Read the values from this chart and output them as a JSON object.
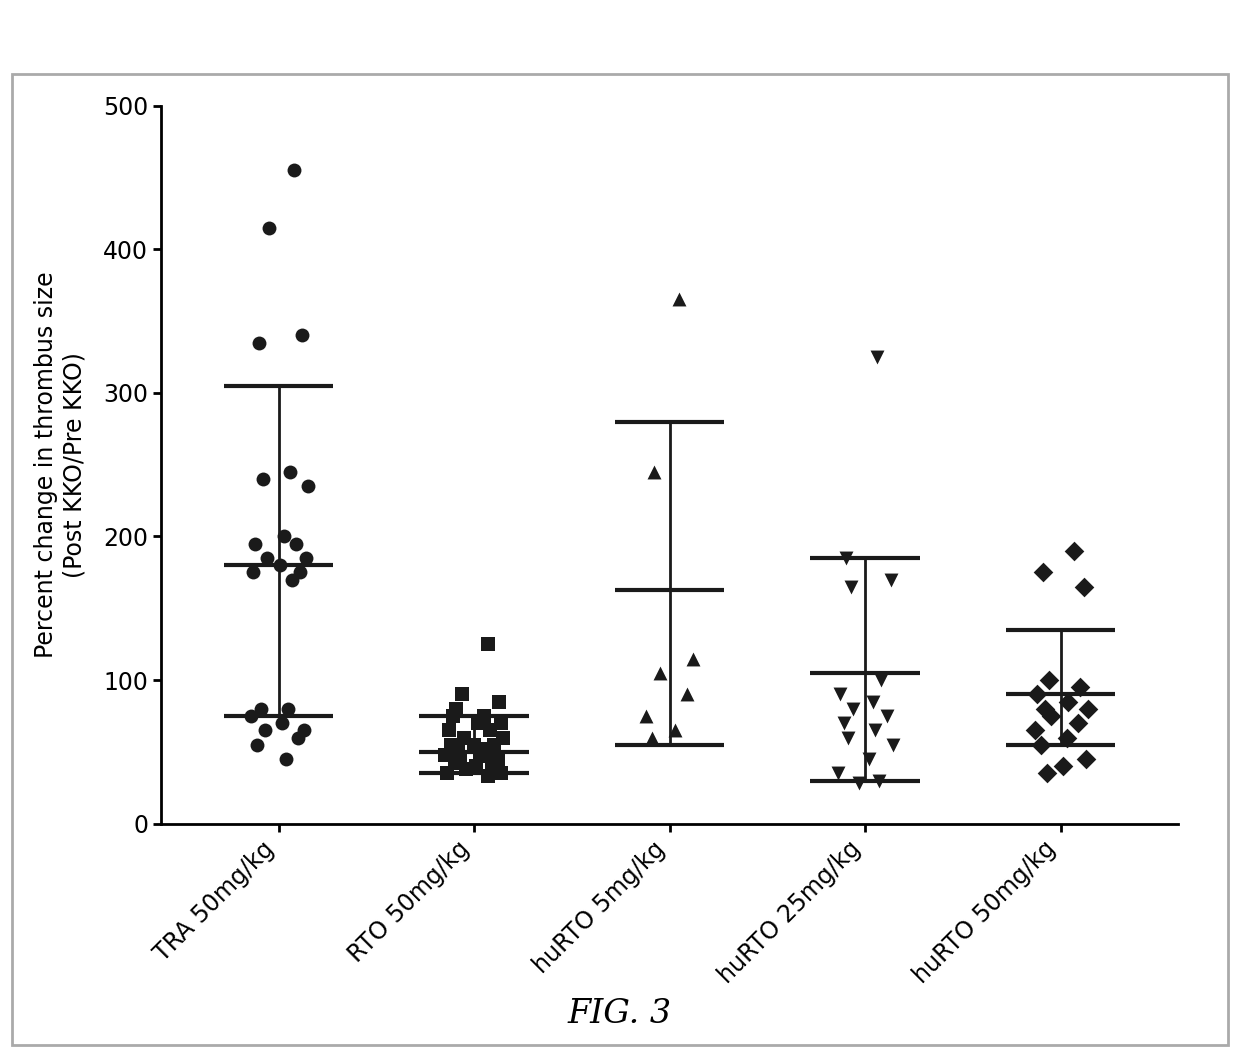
{
  "title": "FIG. 3",
  "ylabel": "Percent change in thrombus size\n(Post KKO/Pre KKO)",
  "ylim": [
    0,
    500
  ],
  "yticks": [
    0,
    100,
    200,
    300,
    400,
    500
  ],
  "categories": [
    "TRA 50mg/kg",
    "RTO 50mg/kg",
    "huRTO 5mg/kg",
    "huRTO 25mg/kg",
    "huRTO 50mg/kg"
  ],
  "background_color": "#ffffff",
  "point_color": "#1a1a1a",
  "errorbar_color": "#1a1a1a",
  "groups": {
    "TRA 50mg/kg": {
      "marker": "o",
      "mean": 180,
      "sd_up": 305,
      "sd_down": 75,
      "points": [
        455,
        415,
        340,
        335,
        245,
        240,
        235,
        200,
        195,
        195,
        185,
        185,
        180,
        175,
        175,
        170,
        80,
        80,
        75,
        70,
        65,
        65,
        60,
        55,
        45
      ]
    },
    "RTO 50mg/kg": {
      "marker": "s",
      "mean": 50,
      "sd_up": 75,
      "sd_down": 35,
      "points": [
        125,
        90,
        85,
        80,
        75,
        75,
        70,
        70,
        65,
        65,
        60,
        60,
        55,
        55,
        55,
        52,
        50,
        50,
        48,
        47,
        45,
        45,
        42,
        42,
        40,
        40,
        38,
        35,
        35,
        33
      ]
    },
    "huRTO 5mg/kg": {
      "marker": "^",
      "mean": 163,
      "sd_up": 280,
      "sd_down": 55,
      "points": [
        365,
        245,
        115,
        105,
        90,
        75,
        65,
        60
      ]
    },
    "huRTO 25mg/kg": {
      "marker": "v",
      "mean": 105,
      "sd_up": 185,
      "sd_down": 30,
      "points": [
        325,
        185,
        170,
        165,
        100,
        90,
        85,
        80,
        75,
        70,
        65,
        60,
        55,
        45,
        35,
        30,
        28
      ]
    },
    "huRTO 50mg/kg": {
      "marker": "D",
      "mean": 90,
      "sd_up": 135,
      "sd_down": 55,
      "points": [
        190,
        175,
        165,
        100,
        95,
        90,
        85,
        80,
        80,
        75,
        70,
        65,
        60,
        55,
        45,
        40,
        35
      ]
    }
  },
  "jitter_seeds": {
    "TRA 50mg/kg": [
      0.08,
      -0.05,
      0.12,
      -0.1,
      0.06,
      -0.08,
      0.15,
      0.03,
      -0.12,
      0.09,
      0.14,
      -0.06,
      0.01,
      0.11,
      -0.13,
      0.07,
      -0.09,
      0.05,
      -0.14,
      0.02,
      0.13,
      -0.07,
      0.1,
      -0.11,
      0.04
    ],
    "RTO 50mg/kg": [
      0.07,
      -0.06,
      0.13,
      -0.09,
      0.05,
      -0.11,
      0.14,
      0.02,
      -0.13,
      0.08,
      0.15,
      -0.05,
      0.0,
      0.1,
      -0.12,
      0.06,
      -0.08,
      0.04,
      -0.15,
      0.03,
      0.12,
      -0.07,
      0.09,
      -0.1,
      0.01,
      0.11,
      -0.04,
      0.14,
      -0.14,
      0.07
    ],
    "huRTO 5mg/kg": [
      0.05,
      -0.08,
      0.12,
      -0.05,
      0.09,
      -0.12,
      0.03,
      -0.09
    ],
    "huRTO 25mg/kg": [
      0.06,
      -0.1,
      0.13,
      -0.07,
      0.08,
      -0.13,
      0.04,
      -0.06,
      0.11,
      -0.11,
      0.05,
      -0.09,
      0.14,
      0.02,
      -0.14,
      0.07,
      -0.03
    ],
    "huRTO 50mg/kg": [
      0.07,
      -0.09,
      0.12,
      -0.06,
      0.1,
      -0.12,
      0.04,
      -0.08,
      0.14,
      -0.05,
      0.09,
      -0.13,
      0.03,
      -0.1,
      0.13,
      0.01,
      -0.07
    ]
  }
}
